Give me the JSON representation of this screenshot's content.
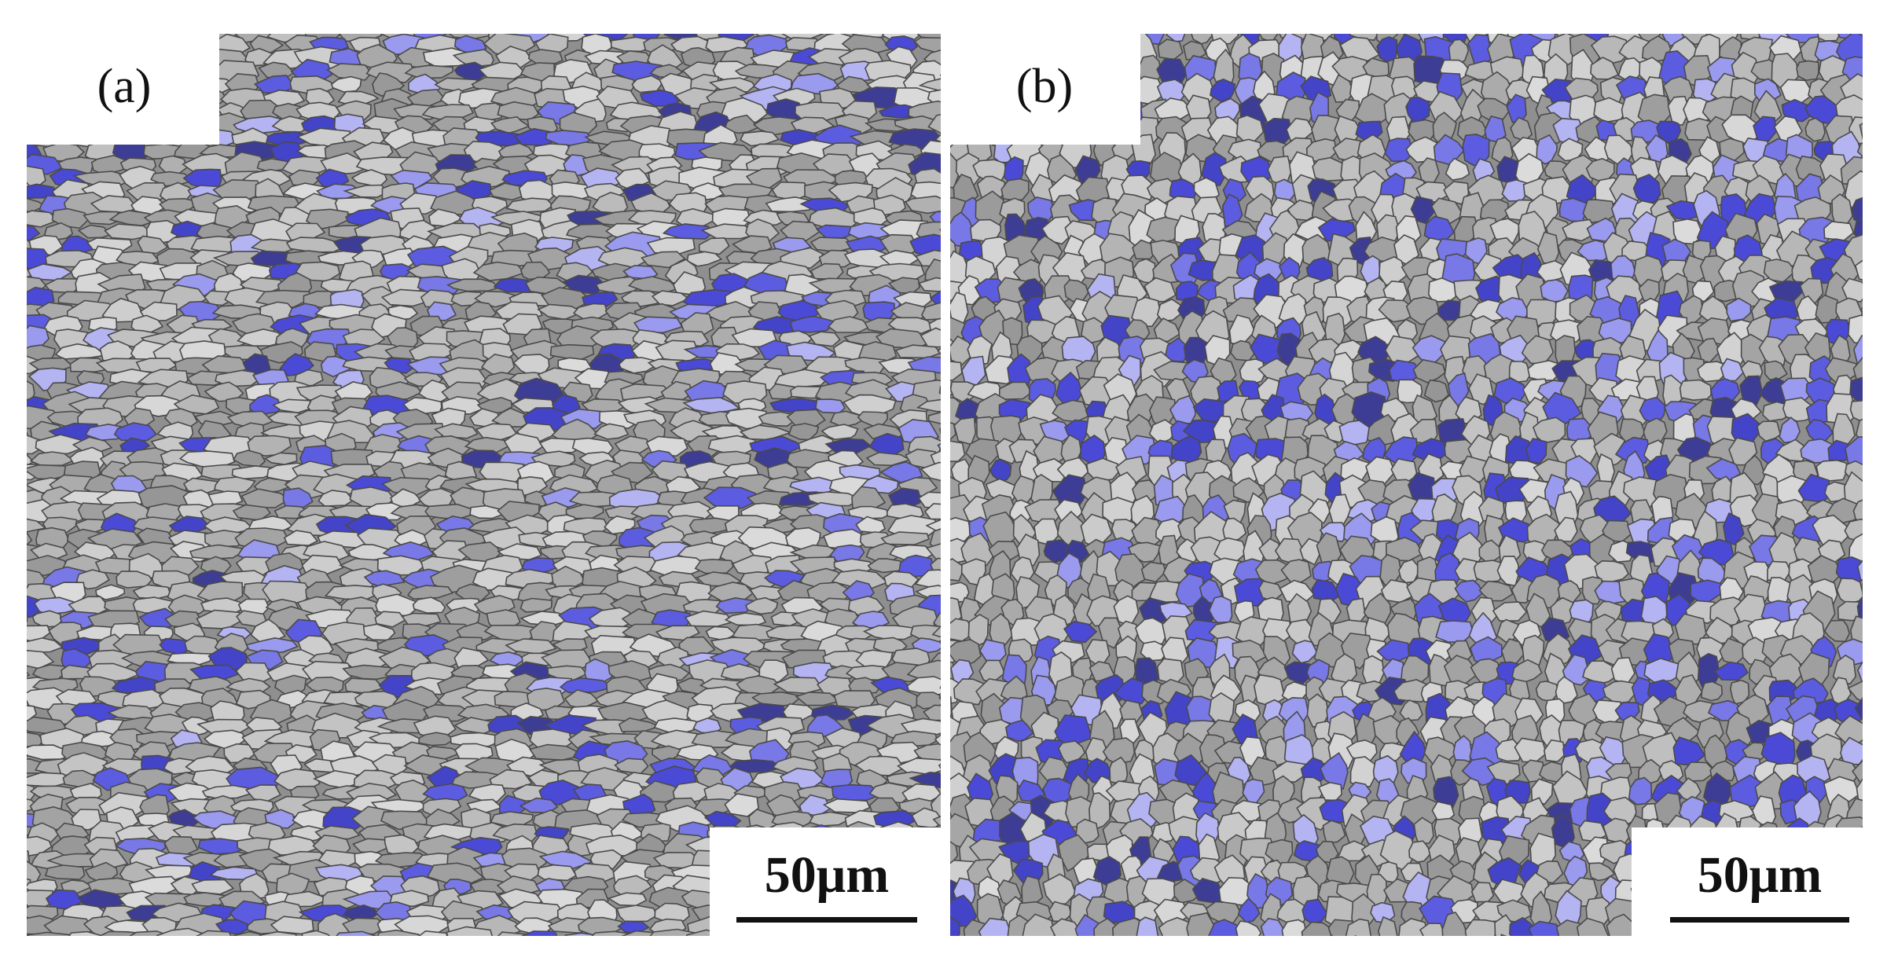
{
  "panels": [
    {
      "label": "(a)",
      "scale_bar": "50μm"
    },
    {
      "label": "(b)",
      "scale_bar": "50μm"
    }
  ]
}
